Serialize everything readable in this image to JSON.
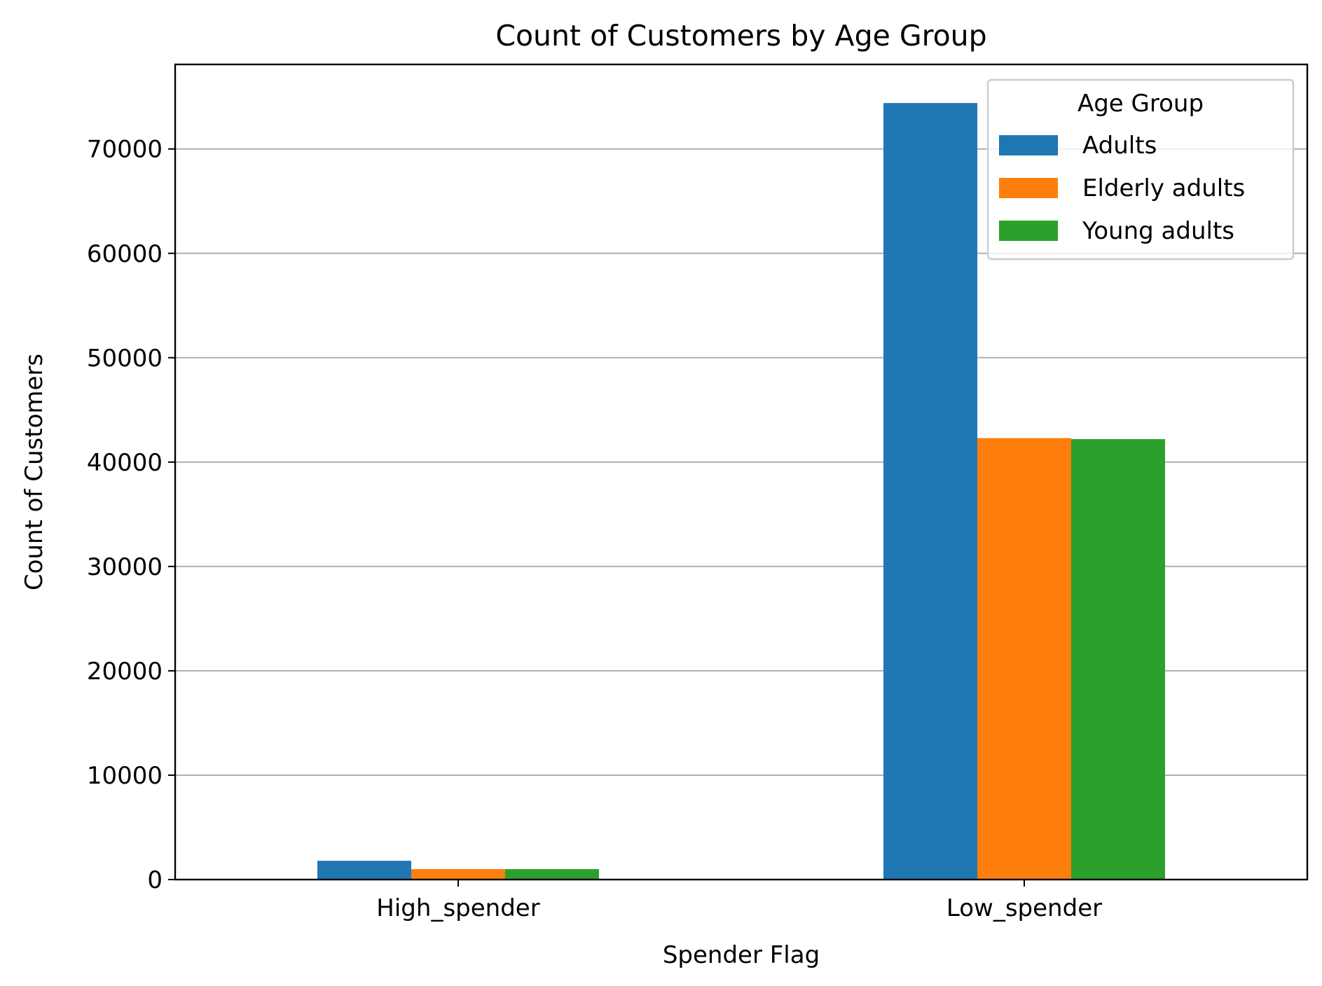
{
  "chart_data": {
    "type": "bar",
    "title": "Count of Customers by Age Group",
    "xlabel": "Spender Flag",
    "ylabel": "Count of Customers",
    "categories": [
      "High_spender",
      "Low_spender"
    ],
    "series": [
      {
        "name": "Adults",
        "color": "#1f77b4",
        "values": [
          1800,
          74400
        ]
      },
      {
        "name": "Elderly adults",
        "color": "#ff7f0e",
        "values": [
          1000,
          42300
        ]
      },
      {
        "name": "Young adults",
        "color": "#2ca02c",
        "values": [
          1000,
          42200
        ]
      }
    ],
    "ylim": [
      0,
      78100
    ],
    "yticks": [
      0,
      10000,
      20000,
      30000,
      40000,
      50000,
      60000,
      70000
    ],
    "ytick_labels": [
      "0",
      "10000",
      "20000",
      "30000",
      "40000",
      "50000",
      "60000",
      "70000"
    ],
    "grid": {
      "y": true,
      "x": false,
      "color": "#b0b0b0"
    },
    "legend": {
      "title": "Age Group",
      "placement": "top-right"
    }
  }
}
